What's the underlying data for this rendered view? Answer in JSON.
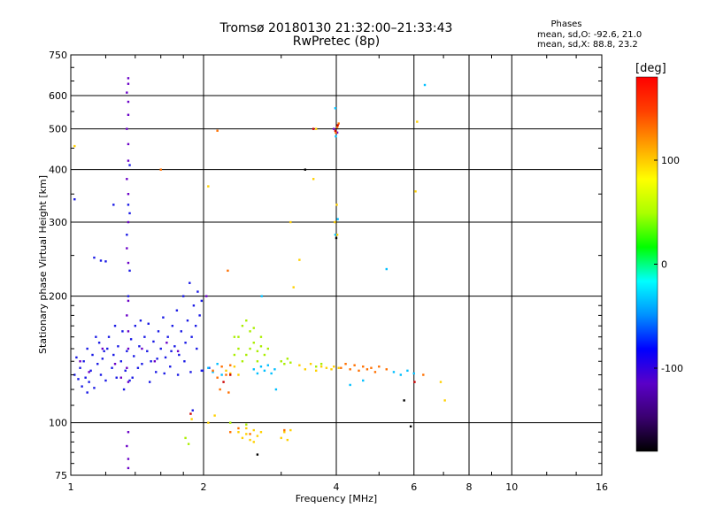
{
  "chart_data": {
    "type": "scatter",
    "title": "Tromsø 20180130 21:32:00–21:33:43",
    "subtitle": "RwPretec (8p)",
    "xlabel": "Frequency [MHz]",
    "ylabel": "Stationary phase Virtual Height [km]",
    "x_scale": "log",
    "y_scale": "log",
    "xlim": [
      1,
      16
    ],
    "ylim": [
      75,
      750
    ],
    "x_ticks": [
      1,
      2,
      4,
      6,
      8,
      10,
      16
    ],
    "y_ticks": [
      75,
      100,
      200,
      300,
      400,
      500,
      600,
      750
    ],
    "grid": true,
    "stats": {
      "heading": "Phases",
      "o_line": "mean, sd,O: -92.6, 21.0",
      "x_line": "mean, sd,X:  88.8, 23.2"
    },
    "colorbar": {
      "title": "[deg]",
      "range": [
        -180,
        180
      ],
      "ticks": [
        -100,
        0,
        100
      ],
      "colors": [
        "#000000",
        "#3a0070",
        "#5a00c8",
        "#0000ff",
        "#0090ff",
        "#00ffff",
        "#00ff00",
        "#aaff00",
        "#ffff00",
        "#ffa000",
        "#ff4000",
        "#ff0000"
      ]
    },
    "series": [
      {
        "color": "#1a1ae6",
        "points": [
          [
            1.02,
            130
          ],
          [
            1.04,
            127
          ],
          [
            1.05,
            135
          ],
          [
            1.06,
            122
          ],
          [
            1.07,
            140
          ],
          [
            1.08,
            128
          ],
          [
            1.09,
            150
          ],
          [
            1.1,
            125
          ],
          [
            1.11,
            133
          ],
          [
            1.12,
            145
          ],
          [
            1.13,
            121
          ],
          [
            1.15,
            138
          ],
          [
            1.16,
            155
          ],
          [
            1.17,
            130
          ],
          [
            1.18,
            142
          ],
          [
            1.2,
            126
          ],
          [
            1.21,
            150
          ],
          [
            1.22,
            160
          ],
          [
            1.24,
            135
          ],
          [
            1.25,
            145
          ],
          [
            1.27,
            128
          ],
          [
            1.28,
            152
          ],
          [
            1.3,
            140
          ],
          [
            1.31,
            165
          ],
          [
            1.33,
            133
          ],
          [
            1.34,
            148
          ],
          [
            1.36,
            126
          ],
          [
            1.37,
            158
          ],
          [
            1.39,
            144
          ],
          [
            1.4,
            170
          ],
          [
            1.42,
            135
          ],
          [
            1.43,
            152
          ],
          [
            1.45,
            138
          ],
          [
            1.47,
            160
          ],
          [
            1.49,
            148
          ],
          [
            1.5,
            172
          ],
          [
            1.52,
            140
          ],
          [
            1.54,
            156
          ],
          [
            1.56,
            132
          ],
          [
            1.58,
            165
          ],
          [
            1.6,
            150
          ],
          [
            1.62,
            178
          ],
          [
            1.64,
            143
          ],
          [
            1.66,
            160
          ],
          [
            1.68,
            136
          ],
          [
            1.7,
            170
          ],
          [
            1.72,
            152
          ],
          [
            1.74,
            185
          ],
          [
            1.76,
            145
          ],
          [
            1.78,
            165
          ],
          [
            1.8,
            200
          ],
          [
            1.82,
            155
          ],
          [
            1.84,
            175
          ],
          [
            1.86,
            215
          ],
          [
            1.88,
            160
          ],
          [
            1.9,
            190
          ],
          [
            1.92,
            170
          ],
          [
            1.94,
            205
          ],
          [
            1.96,
            180
          ],
          [
            1.98,
            195
          ],
          [
            1.03,
            143
          ],
          [
            1.09,
            118
          ],
          [
            1.14,
            160
          ],
          [
            1.19,
            148
          ],
          [
            1.26,
            170
          ],
          [
            1.32,
            120
          ],
          [
            1.38,
            128
          ],
          [
            1.44,
            175
          ],
          [
            1.51,
            125
          ],
          [
            1.57,
            142
          ],
          [
            1.63,
            131
          ],
          [
            1.69,
            148
          ],
          [
            1.75,
            130
          ],
          [
            1.81,
            140
          ],
          [
            1.87,
            132
          ],
          [
            1.93,
            150
          ],
          [
            1.99,
            133
          ],
          [
            1.13,
            247
          ],
          [
            1.17,
            243
          ],
          [
            1.2,
            242
          ],
          [
            1.25,
            330
          ],
          [
            1.02,
            340
          ],
          [
            1.89,
            107
          ],
          [
            1.98,
            133
          ],
          [
            2.06,
            135
          ],
          [
            1.36,
            410
          ],
          [
            1.36,
            315
          ],
          [
            1.35,
            330
          ],
          [
            1.34,
            280
          ],
          [
            1.36,
            230
          ],
          [
            1.35,
            200
          ]
        ]
      },
      {
        "color": "#6a00c8",
        "points": [
          [
            1.35,
            660
          ],
          [
            1.35,
            640
          ],
          [
            1.34,
            610
          ],
          [
            1.35,
            580
          ],
          [
            1.35,
            540
          ],
          [
            1.34,
            500
          ],
          [
            1.35,
            460
          ],
          [
            1.35,
            420
          ],
          [
            1.34,
            380
          ],
          [
            1.35,
            350
          ],
          [
            1.35,
            300
          ],
          [
            1.34,
            260
          ],
          [
            1.35,
            240
          ],
          [
            1.35,
            195
          ],
          [
            1.34,
            180
          ],
          [
            1.35,
            165
          ],
          [
            1.35,
            150
          ],
          [
            1.34,
            135
          ],
          [
            1.35,
            125
          ],
          [
            1.35,
            95
          ],
          [
            1.34,
            88
          ],
          [
            1.35,
            82
          ],
          [
            1.35,
            78
          ],
          [
            1.05,
            140
          ],
          [
            1.1,
            132
          ],
          [
            1.18,
            150
          ],
          [
            1.26,
            138
          ],
          [
            1.3,
            128
          ],
          [
            1.45,
            150
          ],
          [
            1.55,
            140
          ],
          [
            1.65,
            155
          ],
          [
            1.75,
            148
          ],
          [
            2.03,
            200
          ],
          [
            3.95,
            500
          ],
          [
            4.02,
            490
          ]
        ]
      },
      {
        "color": "#00bfff",
        "points": [
          [
            2.05,
            135
          ],
          [
            2.1,
            132
          ],
          [
            2.15,
            138
          ],
          [
            2.2,
            130
          ],
          [
            2.6,
            134
          ],
          [
            2.65,
            131
          ],
          [
            2.7,
            136
          ],
          [
            2.75,
            133
          ],
          [
            2.8,
            137
          ],
          [
            2.85,
            131
          ],
          [
            2.9,
            134
          ],
          [
            2.92,
            120
          ],
          [
            2.71,
            200
          ],
          [
            3.99,
            480
          ],
          [
            3.98,
            560
          ],
          [
            3.98,
            280
          ],
          [
            4.03,
            305
          ],
          [
            5.2,
            232
          ],
          [
            5.4,
            132
          ],
          [
            5.6,
            130
          ],
          [
            5.8,
            133
          ],
          [
            6.0,
            131
          ],
          [
            4.3,
            123
          ],
          [
            4.6,
            126
          ],
          [
            6.35,
            636
          ]
        ]
      },
      {
        "color": "#aaee00",
        "points": [
          [
            2.35,
            160
          ],
          [
            2.4,
            150
          ],
          [
            2.45,
            170
          ],
          [
            2.5,
            145
          ],
          [
            2.55,
            165
          ],
          [
            2.6,
            155
          ],
          [
            2.65,
            140
          ],
          [
            2.7,
            160
          ],
          [
            2.45,
            140
          ],
          [
            2.5,
            175
          ],
          [
            2.55,
            150
          ],
          [
            2.6,
            168
          ],
          [
            2.65,
            148
          ],
          [
            2.4,
            160
          ],
          [
            2.35,
            145
          ],
          [
            2.7,
            152
          ],
          [
            2.75,
            145
          ],
          [
            2.8,
            150
          ],
          [
            3.0,
            140
          ],
          [
            3.05,
            138
          ],
          [
            3.1,
            142
          ],
          [
            3.15,
            139
          ],
          [
            1.82,
            92
          ],
          [
            1.85,
            89
          ],
          [
            2.3,
            100
          ],
          [
            2.5,
            99
          ],
          [
            3.6,
            136
          ],
          [
            3.7,
            138
          ]
        ]
      },
      {
        "color": "#ffd000",
        "points": [
          [
            2.4,
            95
          ],
          [
            2.45,
            92
          ],
          [
            2.5,
            94
          ],
          [
            2.55,
            91
          ],
          [
            2.6,
            96
          ],
          [
            2.65,
            93
          ],
          [
            2.7,
            95
          ],
          [
            2.5,
            97
          ],
          [
            2.6,
            90
          ],
          [
            3.0,
            92
          ],
          [
            3.05,
            95
          ],
          [
            3.1,
            91
          ],
          [
            3.15,
            96
          ],
          [
            2.05,
            100
          ],
          [
            1.88,
            102
          ],
          [
            2.12,
            104
          ],
          [
            2.25,
            133
          ],
          [
            2.3,
            131
          ],
          [
            2.35,
            136
          ],
          [
            2.4,
            130
          ],
          [
            3.3,
            137
          ],
          [
            3.4,
            134
          ],
          [
            3.5,
            138
          ],
          [
            3.6,
            133
          ],
          [
            3.7,
            136
          ],
          [
            3.8,
            135
          ],
          [
            3.9,
            134
          ],
          [
            3.95,
            136
          ],
          [
            4.05,
            135
          ],
          [
            3.55,
            380
          ],
          [
            3.6,
            500
          ],
          [
            4.01,
            330
          ],
          [
            4.02,
            280
          ],
          [
            3.97,
            300
          ],
          [
            3.3,
            244
          ],
          [
            3.2,
            210
          ],
          [
            3.15,
            300
          ],
          [
            6.1,
            520
          ],
          [
            6.05,
            355
          ],
          [
            2.05,
            365
          ],
          [
            7.05,
            113
          ],
          [
            6.9,
            125
          ],
          [
            1.02,
            455
          ]
        ]
      },
      {
        "color": "#ff7000",
        "points": [
          [
            2.1,
            133
          ],
          [
            2.15,
            128
          ],
          [
            2.2,
            136
          ],
          [
            2.25,
            130
          ],
          [
            2.3,
            137
          ],
          [
            2.18,
            120
          ],
          [
            2.28,
            118
          ],
          [
            2.3,
            95
          ],
          [
            2.4,
            97
          ],
          [
            2.55,
            94
          ],
          [
            3.05,
            96
          ],
          [
            4.1,
            135
          ],
          [
            4.2,
            138
          ],
          [
            4.3,
            134
          ],
          [
            4.4,
            137
          ],
          [
            4.5,
            133
          ],
          [
            4.6,
            136
          ],
          [
            4.7,
            134
          ],
          [
            4.8,
            135
          ],
          [
            4.9,
            132
          ],
          [
            5.0,
            136
          ],
          [
            5.2,
            134
          ],
          [
            4.02,
            505
          ],
          [
            4.05,
            515
          ],
          [
            3.99,
            490
          ],
          [
            2.27,
            230
          ],
          [
            2.15,
            495
          ],
          [
            1.6,
            400
          ],
          [
            6.3,
            130
          ]
        ]
      },
      {
        "color": "#cc0000",
        "points": [
          [
            4.03,
            510
          ],
          [
            3.98,
            495
          ],
          [
            2.3,
            130
          ],
          [
            2.22,
            125
          ],
          [
            6.02,
            125
          ],
          [
            3.55,
            500
          ],
          [
            1.87,
            105
          ]
        ]
      },
      {
        "color": "#000000",
        "points": [
          [
            2.65,
            84
          ],
          [
            3.4,
            400
          ],
          [
            5.7,
            113
          ],
          [
            4.0,
            275
          ],
          [
            5.9,
            98
          ]
        ]
      }
    ]
  }
}
